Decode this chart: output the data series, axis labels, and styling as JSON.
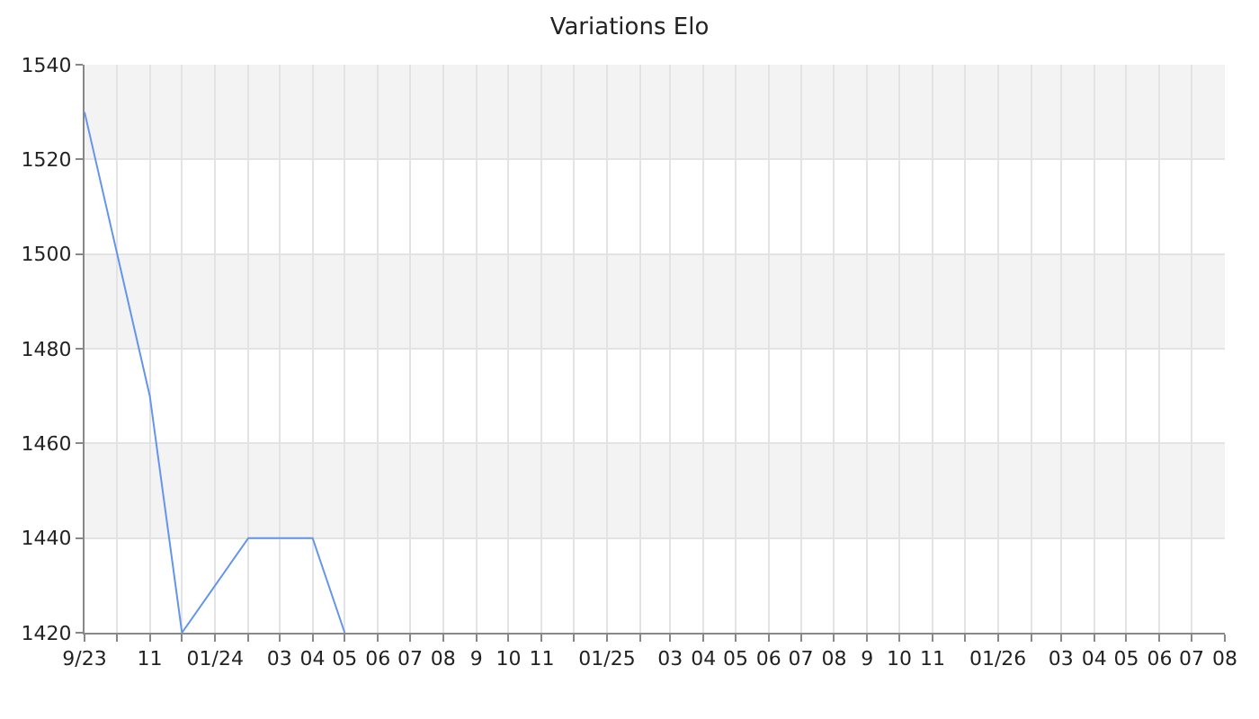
{
  "chart_data": {
    "type": "line",
    "title": "Variations Elo",
    "x": [
      "2023-09",
      "2023-11",
      "2023-12",
      "2024-02",
      "2024-04",
      "2024-05"
    ],
    "series": [
      {
        "color": "#6495ed",
        "values": [
          1530,
          1470,
          1420,
          1440,
          1440,
          1420
        ]
      }
    ],
    "xlim": [
      "2023-09",
      "2026-08"
    ],
    "xticks": [
      {
        "value": "2023-09",
        "label": "9/23"
      },
      {
        "value": "2023-10",
        "label": null
      },
      {
        "value": "2023-11",
        "label": "11"
      },
      {
        "value": "2023-12",
        "label": null
      },
      {
        "value": "2024-01",
        "label": "01/24"
      },
      {
        "value": "2024-02",
        "label": null
      },
      {
        "value": "2024-03",
        "label": "03"
      },
      {
        "value": "2024-04",
        "label": "04"
      },
      {
        "value": "2024-05",
        "label": "05"
      },
      {
        "value": "2024-06",
        "label": "06"
      },
      {
        "value": "2024-07",
        "label": "07"
      },
      {
        "value": "2024-08",
        "label": "08"
      },
      {
        "value": "2024-09",
        "label": "9"
      },
      {
        "value": "2024-10",
        "label": "10"
      },
      {
        "value": "2024-11",
        "label": "11"
      },
      {
        "value": "2024-12",
        "label": null
      },
      {
        "value": "2025-01",
        "label": "01/25"
      },
      {
        "value": "2025-02",
        "label": null
      },
      {
        "value": "2025-03",
        "label": "03"
      },
      {
        "value": "2025-04",
        "label": "04"
      },
      {
        "value": "2025-05",
        "label": "05"
      },
      {
        "value": "2025-06",
        "label": "06"
      },
      {
        "value": "2025-07",
        "label": "07"
      },
      {
        "value": "2025-08",
        "label": "08"
      },
      {
        "value": "2025-09",
        "label": "9"
      },
      {
        "value": "2025-10",
        "label": "10"
      },
      {
        "value": "2025-11",
        "label": "11"
      },
      {
        "value": "2025-12",
        "label": null
      },
      {
        "value": "2026-01",
        "label": "01/26"
      },
      {
        "value": "2026-02",
        "label": null
      },
      {
        "value": "2026-03",
        "label": "03"
      },
      {
        "value": "2026-04",
        "label": "04"
      },
      {
        "value": "2026-05",
        "label": "05"
      },
      {
        "value": "2026-06",
        "label": "06"
      },
      {
        "value": "2026-07",
        "label": "07"
      },
      {
        "value": "2026-08",
        "label": "08"
      }
    ],
    "ylim": [
      1420,
      1540
    ],
    "yticks": [
      1420,
      1440,
      1460,
      1480,
      1500,
      1520,
      1540
    ],
    "bands": [
      {
        "axis": "y",
        "from": 1520,
        "to": 1540,
        "color": "#f3f3f3"
      },
      {
        "axis": "y",
        "from": 1480,
        "to": 1500,
        "color": "#f3f3f3"
      },
      {
        "axis": "y",
        "from": 1440,
        "to": 1460,
        "color": "#f3f3f3"
      }
    ],
    "grid": true,
    "marker": "none",
    "line_style": "solid"
  }
}
